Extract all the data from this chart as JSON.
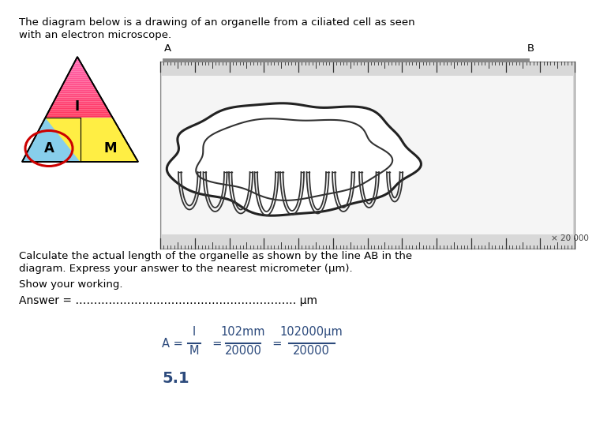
{
  "title_line1": "The diagram below is a drawing of an organelle from a ciliated cell as seen",
  "title_line2": "with an electron microscope.",
  "triangle_pink": "#ff80c0",
  "triangle_cyan": "#87ceeb",
  "triangle_yellow": "#ffee44",
  "circle_color": "#cc0000",
  "point_A": "A",
  "point_B": "B",
  "question_line1": "Calculate the actual length of the organelle as shown by the line AB in the",
  "question_line2": "diagram. Express your answer to the nearest micrometer (μm).",
  "show_working": "Show your working.",
  "answer_line": "Answer = …………………………………………………… μm",
  "formula_color": "#2c4a7c",
  "answer_value": "5.1",
  "background_color": "#ffffff",
  "text_color": "#000000",
  "label_I": "I",
  "label_A": "A",
  "label_M": "M",
  "mag_text": "× 20 000"
}
